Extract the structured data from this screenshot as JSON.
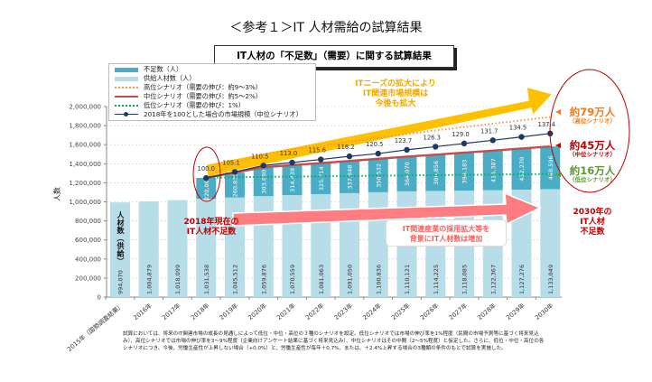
{
  "header": {
    "title": "＜参考１＞IT 人材需給の試算結果",
    "subtitle": "IT人材の「不足数」（需要）に関する試算結果"
  },
  "chart_data": {
    "type": "bar",
    "stacked": true,
    "categories": [
      "2015年（国勢調査結果）",
      "2016年",
      "2017年",
      "2018年",
      "2019年",
      "2020年",
      "2021年",
      "2022年",
      "2023年",
      "2024年",
      "2025年",
      "2026年",
      "2027年",
      "2028年",
      "2029年",
      "2030年"
    ],
    "ylabel": "人数",
    "ylim": [
      0,
      2000000
    ],
    "yticks": [
      "0",
      "200,000",
      "400,000",
      "600,000",
      "800,000",
      "1,000,000",
      "1,200,000",
      "1,400,000",
      "1,600,000",
      "1,800,000",
      "2,000,000"
    ],
    "y2lim": [
      0,
      160
    ],
    "grid": true,
    "legend_position": "top-left",
    "legend": [
      "不足数（人）",
      "供給人材数（人）",
      "高位シナリオ（需要の伸び：約9～3%）",
      "中位シナリオ（需要の伸び：約5～2%）",
      "低位シナリオ（需要の伸び：1%）",
      "2018年を100とした場合の市場規模（中位シナリオ）"
    ],
    "series": [
      {
        "name": "供給人材数（人）",
        "kind": "bar",
        "color": "#b7dde8",
        "values": [
          994070,
          1004879,
          1018099,
          1031538,
          1045512,
          1059876,
          1070559,
          1081063,
          1091050,
          1100836,
          1110121,
          1114225,
          1118085,
          1122367,
          1127276,
          1133049
        ],
        "labels": [
          "994,070",
          "1,004,879",
          "1,018,099",
          "1,031,538",
          "1,045,512",
          "1,059,876",
          "1,070,559",
          "1,081,063",
          "1,091,050",
          "1,100,836",
          "1,110,121",
          "1,114,225",
          "1,118,085",
          "1,122,367",
          "1,127,276",
          "1,133,049"
        ]
      },
      {
        "name": "不足数（人）",
        "kind": "bar",
        "color": "#4bacc6",
        "values": [
          null,
          null,
          null,
          220000,
          260835,
          303680,
          314439,
          325714,
          337848,
          350532,
          364070,
          380856,
          398183,
          415387,
          432270,
          448596
        ],
        "labels": [
          "",
          "",
          "",
          "220,000",
          "260,835",
          "303,680",
          "314,439",
          "325,714",
          "337,848",
          "350,532",
          "364,070",
          "380,856",
          "398,183",
          "415,387",
          "432,270",
          "448,596"
        ]
      },
      {
        "name": "高位シナリオ（需要の伸び：約9～3%）",
        "kind": "line",
        "style": "dotted",
        "color": "#f79646",
        "values": [
          null,
          null,
          null,
          1251538,
          1410000,
          1500000,
          1550000,
          1590000,
          1630000,
          1670000,
          1710000,
          1750000,
          1785000,
          1820000,
          1855000,
          1890000
        ]
      },
      {
        "name": "中位シナリオ（需要の伸び：約5～2%）",
        "kind": "line",
        "style": "solid",
        "color": "#c0504d",
        "values": [
          null,
          null,
          null,
          1251538,
          1306347,
          1363556,
          1384998,
          1406777,
          1428898,
          1451368,
          1474191,
          1495081,
          1516268,
          1537754,
          1559546,
          1581645
        ]
      },
      {
        "name": "低位シナリオ（需要の伸び：1%）",
        "kind": "line",
        "style": "dotted",
        "color": "#00b050",
        "values": [
          null,
          null,
          null,
          1251538,
          1258000,
          1262000,
          1265000,
          1268000,
          1271000,
          1274000,
          1277000,
          1280000,
          1283000,
          1286000,
          1289000,
          1293000
        ]
      },
      {
        "name": "2018年を100とした場合の市場規模（中位シナリオ）",
        "kind": "line",
        "axis": "secondary",
        "color": "#1f3864",
        "values": [
          null,
          null,
          null,
          100.0,
          105.1,
          110.5,
          113.0,
          115.6,
          118.2,
          120.5,
          123.7,
          126.3,
          129.0,
          131.7,
          134.5,
          137.4
        ],
        "labels": [
          "",
          "",
          "",
          "100.0",
          "105.1",
          "110.5",
          "113.0",
          "115.6",
          "118.2",
          "120.5",
          "123.7",
          "126.3",
          "129.0",
          "131.7",
          "134.5",
          "137.4"
        ]
      }
    ],
    "bar_inner_label_2015": "人材数（供給）"
  },
  "annotations": {
    "market_growth": [
      "ITニーズの拡大により",
      "IT関連市場規模は",
      "今後も拡大"
    ],
    "shortage_2018": [
      "2018年現在の",
      "IT人材不足数"
    ],
    "supply_growth": [
      "IT関連産業の採用拡大等を",
      "背景にIT人材数は増加"
    ],
    "shortage_2030": [
      "2030年の",
      "IT人材",
      "不足数"
    ],
    "high": {
      "value": "約79万人",
      "label": "（高位シナリオ）",
      "color": "#f07c1e"
    },
    "mid": {
      "value": "約45万人",
      "label": "（中位シナリオ）",
      "color": "#c00000"
    },
    "low": {
      "value": "約16万人",
      "label": "（低位シナリオ）",
      "color": "#5b9a2c"
    }
  },
  "footnote": "試算においては、将来のIT関連市場の成長の見通しによって低位・中位・高位の３種のシナリオを設定。低位シナリオでは市場の伸び率を1%程度（民間の市場予測等に基づく将来見込み）、高位シナリオでは市場の伸び率を3～9%程度（企業向けアンケート結果に基づく将来見込み）、中位シナリオはその中間（2～5%程度）と仮定した。さらに、低位・中位・高位の各シナリオにつき、今後、労働生産性が上昇しない場合（+0.0%）と、労働生産性が毎年＋0.7%、または、＋2.4%上昇する場合の3種類の条件のもとで試算を実施した。"
}
